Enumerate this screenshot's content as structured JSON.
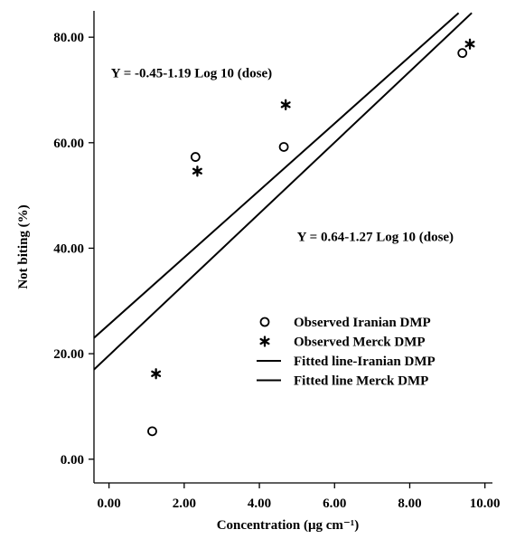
{
  "chart_data": {
    "type": "scatter",
    "xlabel": "Concentration (μg cm⁻¹)",
    "ylabel": "Not biting (%)",
    "xlim": [
      -0.4,
      10.2
    ],
    "ylim": [
      -4.5,
      85
    ],
    "x_ticks": [
      0,
      2,
      4,
      6,
      8,
      10
    ],
    "x_tick_labels": [
      "0.00",
      "2.00",
      "4.00",
      "6.00",
      "8.00",
      "10.00"
    ],
    "y_ticks": [
      0,
      20,
      40,
      60,
      80
    ],
    "y_tick_labels": [
      "0.00",
      "20.00",
      "40.00",
      "60.00",
      "80.00"
    ],
    "grid": false,
    "legend_position": "bottom-right",
    "series": [
      {
        "name": "Observed Iranian DMP",
        "kind": "points",
        "marker": "circle",
        "points": [
          [
            1.15,
            5.3
          ],
          [
            2.3,
            57.3
          ],
          [
            4.65,
            59.2
          ],
          [
            9.4,
            77.0
          ]
        ]
      },
      {
        "name": "Observed Merck DMP",
        "kind": "points",
        "marker": "star",
        "points": [
          [
            1.25,
            16.2
          ],
          [
            2.35,
            54.6
          ],
          [
            4.7,
            67.2
          ],
          [
            9.6,
            78.7
          ]
        ]
      },
      {
        "name": "Fitted line-Iranian DMP",
        "kind": "line",
        "style": "solid",
        "points": [
          [
            -0.4,
            17.0
          ],
          [
            9.65,
            84.6
          ]
        ]
      },
      {
        "name": "Fitted line Merck DMP",
        "kind": "line",
        "style": "dashed",
        "points": [
          [
            -0.4,
            23.0
          ],
          [
            9.3,
            84.6
          ]
        ]
      }
    ],
    "annotations": [
      {
        "text": "Y = -0.45-1.19 Log 10 (dose)",
        "x": 0.05,
        "y": 72.4
      },
      {
        "text": "Y = 0.64-1.27 Log 10 (dose)",
        "x": 5.0,
        "y": 41.4
      }
    ]
  }
}
